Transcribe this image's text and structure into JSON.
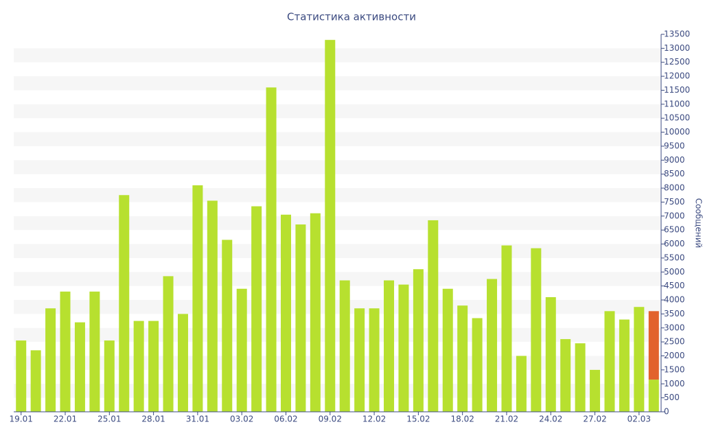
{
  "chart_data": {
    "type": "bar",
    "stacked": true,
    "title": "Статистика активности",
    "y_label": "Сообщений",
    "y_axis_side": "right",
    "categories": [
      "19.01",
      null,
      null,
      "22.01",
      null,
      null,
      "25.01",
      null,
      null,
      "28.01",
      null,
      null,
      "31.01",
      null,
      null,
      "03.02",
      null,
      null,
      "06.02",
      null,
      null,
      "09.02",
      null,
      null,
      "12.02",
      null,
      null,
      "15.02",
      null,
      null,
      "18.02",
      null,
      null,
      "21.02",
      null,
      null,
      "24.02",
      null,
      null,
      "27.02",
      null,
      null,
      "02.03",
      null
    ],
    "series": [
      {
        "color": "#b7e02f",
        "values": [
          2550,
          2200,
          3700,
          4300,
          3200,
          4300,
          2550,
          7750,
          3250,
          3250,
          4850,
          3500,
          8100,
          7550,
          6150,
          4400,
          7350,
          11600,
          7050,
          6700,
          7100,
          13300,
          4700,
          3700,
          3700,
          4700,
          4550,
          5100,
          6850,
          4400,
          3800,
          3350,
          4750,
          5950,
          2000,
          5850,
          4100,
          2600,
          2450,
          1500,
          3600,
          3300,
          3750,
          1150
        ]
      },
      {
        "color": "#e2622c",
        "values": [
          null,
          null,
          null,
          null,
          null,
          null,
          null,
          null,
          null,
          null,
          null,
          null,
          null,
          null,
          null,
          null,
          null,
          null,
          null,
          null,
          null,
          null,
          null,
          null,
          null,
          null,
          null,
          null,
          null,
          null,
          null,
          null,
          null,
          null,
          null,
          null,
          null,
          null,
          null,
          null,
          null,
          null,
          null,
          2450
        ]
      }
    ],
    "ylim": [
      0,
      13500
    ],
    "yticks": [
      0,
      500,
      1000,
      1500,
      2000,
      2500,
      3000,
      3500,
      4000,
      4500,
      5000,
      5500,
      6000,
      6500,
      7000,
      7500,
      8000,
      8500,
      9000,
      9500,
      10000,
      10500,
      11000,
      11500,
      12000,
      12500,
      13000,
      13500
    ],
    "grid": "bands"
  }
}
